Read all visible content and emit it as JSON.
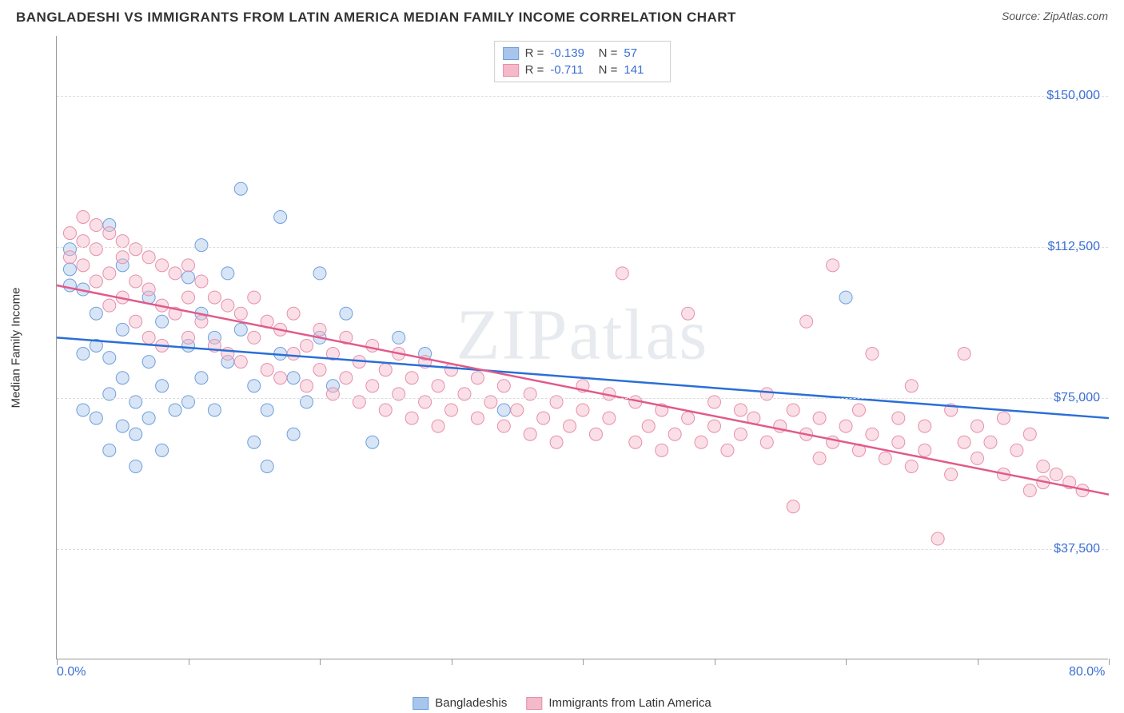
{
  "header": {
    "title": "BANGLADESHI VS IMMIGRANTS FROM LATIN AMERICA MEDIAN FAMILY INCOME CORRELATION CHART",
    "source_prefix": "Source: ",
    "source_name": "ZipAtlas.com"
  },
  "chart": {
    "type": "scatter",
    "y_axis_label": "Median Family Income",
    "watermark": "ZIPatlas",
    "xlim": [
      0,
      80
    ],
    "ylim": [
      10000,
      165000
    ],
    "x_ticks": [
      0,
      10,
      20,
      30,
      40,
      50,
      60,
      70,
      80
    ],
    "x_tick_labels": {
      "0": "0.0%",
      "80": "80.0%"
    },
    "y_gridlines": [
      37500,
      75000,
      112500,
      150000
    ],
    "y_tick_labels": [
      "$37,500",
      "$75,000",
      "$112,500",
      "$150,000"
    ],
    "background_color": "#ffffff",
    "grid_color": "#dddddd",
    "axis_color": "#999999",
    "label_color": "#3b6fd4",
    "marker_radius": 8,
    "marker_opacity": 0.45,
    "series": [
      {
        "name": "Bangladeshis",
        "color_fill": "#a8c5ec",
        "color_stroke": "#6f9fdc",
        "line_color": "#2a6fd6",
        "R": "-0.139",
        "N": "57",
        "trend": {
          "x1": 0,
          "y1": 90000,
          "x2": 80,
          "y2": 70000
        },
        "points": [
          [
            1,
            103000
          ],
          [
            1,
            107000
          ],
          [
            1,
            112000
          ],
          [
            2,
            102000
          ],
          [
            2,
            86000
          ],
          [
            2,
            72000
          ],
          [
            3,
            96000
          ],
          [
            3,
            88000
          ],
          [
            3,
            70000
          ],
          [
            4,
            118000
          ],
          [
            4,
            85000
          ],
          [
            4,
            76000
          ],
          [
            4,
            62000
          ],
          [
            5,
            108000
          ],
          [
            5,
            92000
          ],
          [
            5,
            80000
          ],
          [
            5,
            68000
          ],
          [
            6,
            74000
          ],
          [
            6,
            66000
          ],
          [
            6,
            58000
          ],
          [
            7,
            100000
          ],
          [
            7,
            84000
          ],
          [
            7,
            70000
          ],
          [
            8,
            94000
          ],
          [
            8,
            78000
          ],
          [
            8,
            62000
          ],
          [
            9,
            72000
          ],
          [
            10,
            105000
          ],
          [
            10,
            88000
          ],
          [
            10,
            74000
          ],
          [
            11,
            113000
          ],
          [
            11,
            96000
          ],
          [
            11,
            80000
          ],
          [
            12,
            90000
          ],
          [
            12,
            72000
          ],
          [
            13,
            106000
          ],
          [
            13,
            84000
          ],
          [
            14,
            127000
          ],
          [
            14,
            92000
          ],
          [
            15,
            78000
          ],
          [
            15,
            64000
          ],
          [
            16,
            72000
          ],
          [
            16,
            58000
          ],
          [
            17,
            120000
          ],
          [
            17,
            86000
          ],
          [
            18,
            80000
          ],
          [
            18,
            66000
          ],
          [
            19,
            74000
          ],
          [
            20,
            106000
          ],
          [
            20,
            90000
          ],
          [
            21,
            78000
          ],
          [
            22,
            96000
          ],
          [
            24,
            64000
          ],
          [
            26,
            90000
          ],
          [
            28,
            86000
          ],
          [
            34,
            72000
          ],
          [
            60,
            100000
          ]
        ]
      },
      {
        "name": "Immigrants from Latin America",
        "color_fill": "#f4b9ca",
        "color_stroke": "#e78fac",
        "line_color": "#e15a8a",
        "R": "-0.711",
        "N": "141",
        "trend": {
          "x1": 0,
          "y1": 103000,
          "x2": 80,
          "y2": 51000
        },
        "points": [
          [
            1,
            116000
          ],
          [
            1,
            110000
          ],
          [
            2,
            120000
          ],
          [
            2,
            114000
          ],
          [
            2,
            108000
          ],
          [
            3,
            118000
          ],
          [
            3,
            112000
          ],
          [
            3,
            104000
          ],
          [
            4,
            116000
          ],
          [
            4,
            106000
          ],
          [
            4,
            98000
          ],
          [
            5,
            114000
          ],
          [
            5,
            110000
          ],
          [
            5,
            100000
          ],
          [
            6,
            112000
          ],
          [
            6,
            104000
          ],
          [
            6,
            94000
          ],
          [
            7,
            110000
          ],
          [
            7,
            102000
          ],
          [
            7,
            90000
          ],
          [
            8,
            108000
          ],
          [
            8,
            98000
          ],
          [
            8,
            88000
          ],
          [
            9,
            106000
          ],
          [
            9,
            96000
          ],
          [
            10,
            108000
          ],
          [
            10,
            100000
          ],
          [
            10,
            90000
          ],
          [
            11,
            104000
          ],
          [
            11,
            94000
          ],
          [
            12,
            100000
          ],
          [
            12,
            88000
          ],
          [
            13,
            98000
          ],
          [
            13,
            86000
          ],
          [
            14,
            96000
          ],
          [
            14,
            84000
          ],
          [
            15,
            100000
          ],
          [
            15,
            90000
          ],
          [
            16,
            94000
          ],
          [
            16,
            82000
          ],
          [
            17,
            92000
          ],
          [
            17,
            80000
          ],
          [
            18,
            96000
          ],
          [
            18,
            86000
          ],
          [
            19,
            88000
          ],
          [
            19,
            78000
          ],
          [
            20,
            92000
          ],
          [
            20,
            82000
          ],
          [
            21,
            86000
          ],
          [
            21,
            76000
          ],
          [
            22,
            90000
          ],
          [
            22,
            80000
          ],
          [
            23,
            84000
          ],
          [
            23,
            74000
          ],
          [
            24,
            88000
          ],
          [
            24,
            78000
          ],
          [
            25,
            82000
          ],
          [
            25,
            72000
          ],
          [
            26,
            86000
          ],
          [
            26,
            76000
          ],
          [
            27,
            80000
          ],
          [
            27,
            70000
          ],
          [
            28,
            84000
          ],
          [
            28,
            74000
          ],
          [
            29,
            78000
          ],
          [
            29,
            68000
          ],
          [
            30,
            82000
          ],
          [
            30,
            72000
          ],
          [
            31,
            76000
          ],
          [
            32,
            80000
          ],
          [
            32,
            70000
          ],
          [
            33,
            74000
          ],
          [
            34,
            78000
          ],
          [
            34,
            68000
          ],
          [
            35,
            72000
          ],
          [
            36,
            76000
          ],
          [
            36,
            66000
          ],
          [
            37,
            70000
          ],
          [
            38,
            74000
          ],
          [
            38,
            64000
          ],
          [
            39,
            68000
          ],
          [
            40,
            78000
          ],
          [
            40,
            72000
          ],
          [
            41,
            66000
          ],
          [
            42,
            76000
          ],
          [
            42,
            70000
          ],
          [
            43,
            106000
          ],
          [
            44,
            74000
          ],
          [
            44,
            64000
          ],
          [
            45,
            68000
          ],
          [
            46,
            72000
          ],
          [
            46,
            62000
          ],
          [
            47,
            66000
          ],
          [
            48,
            96000
          ],
          [
            48,
            70000
          ],
          [
            49,
            64000
          ],
          [
            50,
            74000
          ],
          [
            50,
            68000
          ],
          [
            51,
            62000
          ],
          [
            52,
            72000
          ],
          [
            52,
            66000
          ],
          [
            53,
            70000
          ],
          [
            54,
            76000
          ],
          [
            54,
            64000
          ],
          [
            55,
            68000
          ],
          [
            56,
            72000
          ],
          [
            56,
            48000
          ],
          [
            57,
            94000
          ],
          [
            57,
            66000
          ],
          [
            58,
            70000
          ],
          [
            58,
            60000
          ],
          [
            59,
            108000
          ],
          [
            59,
            64000
          ],
          [
            60,
            68000
          ],
          [
            61,
            72000
          ],
          [
            61,
            62000
          ],
          [
            62,
            86000
          ],
          [
            62,
            66000
          ],
          [
            63,
            60000
          ],
          [
            64,
            70000
          ],
          [
            64,
            64000
          ],
          [
            65,
            78000
          ],
          [
            65,
            58000
          ],
          [
            66,
            68000
          ],
          [
            66,
            62000
          ],
          [
            67,
            40000
          ],
          [
            68,
            72000
          ],
          [
            68,
            56000
          ],
          [
            69,
            86000
          ],
          [
            69,
            64000
          ],
          [
            70,
            68000
          ],
          [
            70,
            60000
          ],
          [
            71,
            64000
          ],
          [
            72,
            70000
          ],
          [
            72,
            56000
          ],
          [
            73,
            62000
          ],
          [
            74,
            66000
          ],
          [
            74,
            52000
          ],
          [
            75,
            58000
          ],
          [
            75,
            54000
          ],
          [
            76,
            56000
          ],
          [
            77,
            54000
          ],
          [
            78,
            52000
          ]
        ]
      }
    ],
    "bottom_legend": [
      {
        "label": "Bangladeshis",
        "fill": "#a8c5ec",
        "stroke": "#6f9fdc"
      },
      {
        "label": "Immigrants from Latin America",
        "fill": "#f4b9ca",
        "stroke": "#e78fac"
      }
    ]
  }
}
